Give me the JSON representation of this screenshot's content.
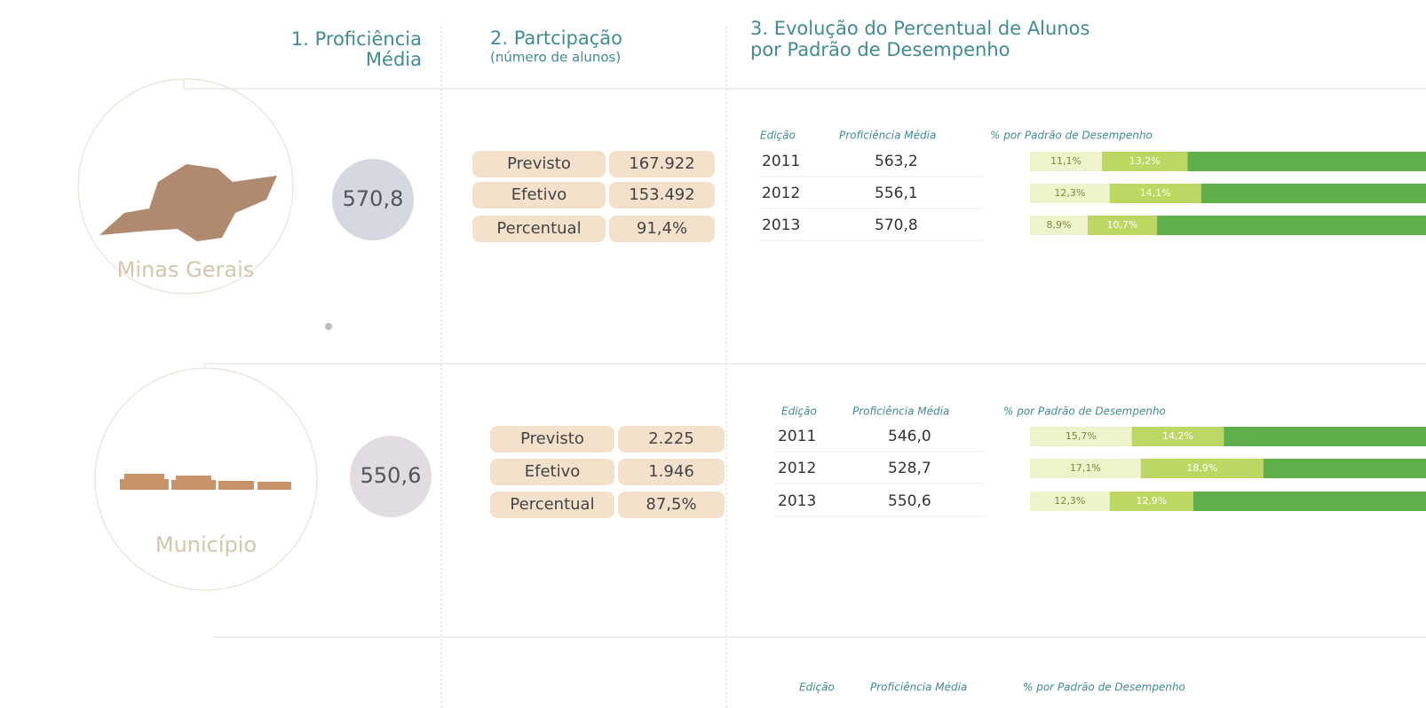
{
  "header": {
    "col1": [
      "1. Proficiência",
      "Média"
    ],
    "col2": {
      "title": "2. Partcipação",
      "subtitle": "(número de alunos)"
    },
    "col3": [
      "3. Evolução do Percentual de Alunos",
      "por Padrão de Desempenho"
    ]
  },
  "sections": [
    {
      "name": "Minas Gerais",
      "proficiency": "570,8",
      "participation": [
        {
          "label": "Previsto",
          "value": "167.922"
        },
        {
          "label": "Efetivo",
          "value": "153.492"
        },
        {
          "label": "Percentual",
          "value": "91,4%"
        }
      ],
      "evolution": {
        "headers": [
          "Edição",
          "Proficiência Média",
          "% por Padrão de Desempenho"
        ],
        "rows": [
          {
            "year": "2011",
            "proficiency": "563,2",
            "segments": [
              {
                "value": 11.1,
                "label": "11,1%"
              },
              {
                "value": 13.2,
                "label": "13,2%"
              }
            ]
          },
          {
            "year": "2012",
            "proficiency": "556,1",
            "segments": [
              {
                "value": 12.3,
                "label": "12,3%"
              },
              {
                "value": 14.1,
                "label": "14,1%"
              }
            ]
          },
          {
            "year": "2013",
            "proficiency": "570,8",
            "segments": [
              {
                "value": 8.9,
                "label": "8,9%"
              },
              {
                "value": 10.7,
                "label": "10,7%"
              }
            ]
          }
        ]
      }
    },
    {
      "name": "Município",
      "proficiency": "550,6",
      "participation": [
        {
          "label": "Previsto",
          "value": "2.225"
        },
        {
          "label": "Efetivo",
          "value": "1.946"
        },
        {
          "label": "Percentual",
          "value": "87,5%"
        }
      ],
      "evolution": {
        "headers": [
          "Edição",
          "Proficiência Média",
          "% por Padrão de Desempenho"
        ],
        "rows": [
          {
            "year": "2011",
            "proficiency": "546,0",
            "segments": [
              {
                "value": 15.7,
                "label": "15,7%"
              },
              {
                "value": 14.2,
                "label": "14,2%"
              }
            ]
          },
          {
            "year": "2012",
            "proficiency": "528,7",
            "segments": [
              {
                "value": 17.1,
                "label": "17,1%"
              },
              {
                "value": 18.9,
                "label": "18,9%"
              }
            ]
          },
          {
            "year": "2013",
            "proficiency": "550,6",
            "segments": [
              {
                "value": 12.3,
                "label": "12,3%"
              },
              {
                "value": 12.9,
                "label": "12,9%"
              }
            ]
          }
        ]
      }
    },
    {
      "evolution": {
        "headers": [
          "Edição",
          "Proficiência Média",
          "% por Padrão de Desempenho"
        ]
      }
    }
  ]
}
